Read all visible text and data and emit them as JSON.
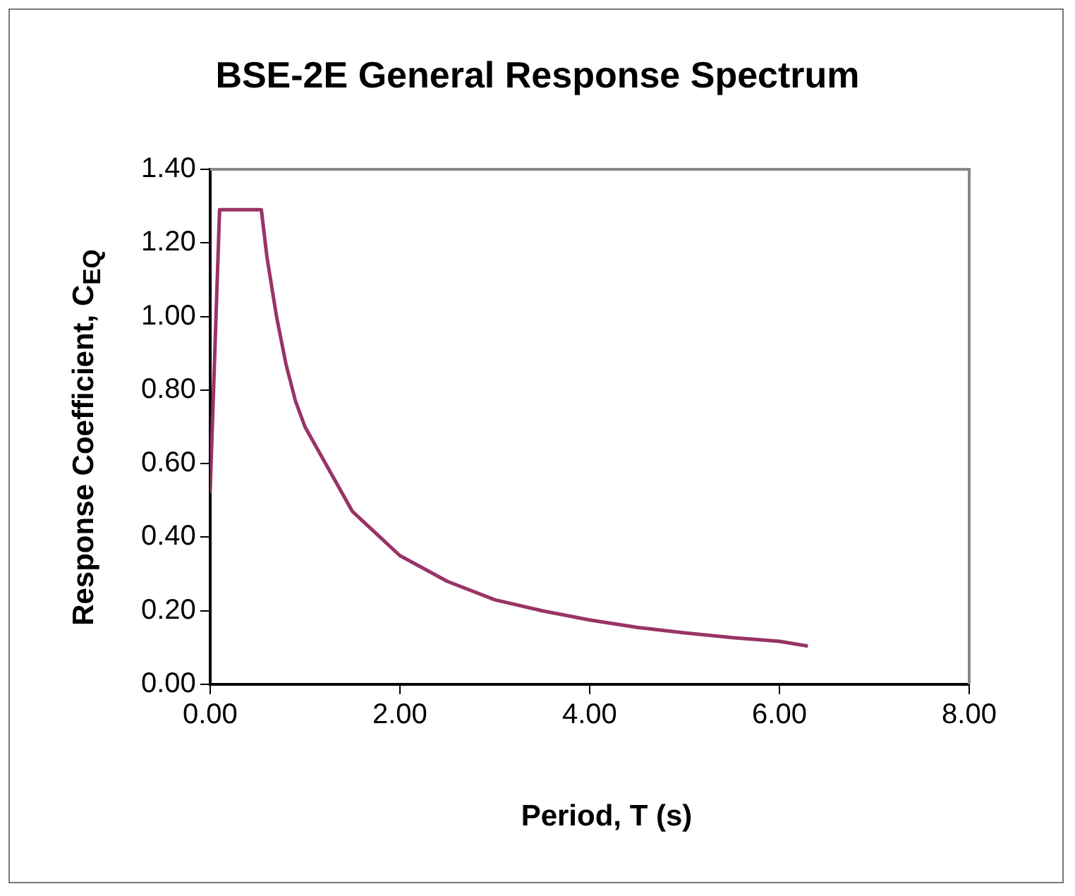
{
  "chart_data": {
    "type": "line",
    "title": "BSE-2E General Response Spectrum",
    "xlabel": "Period, T (s)",
    "ylabel": "Response Coefficient, C$_{EQ}$",
    "series": [
      {
        "color": "#993366",
        "x": [
          0,
          0.1,
          0.54,
          0.6,
          0.7,
          0.8,
          0.9,
          1.0,
          1.5,
          2.0,
          2.5,
          3.0,
          3.5,
          4.0,
          4.5,
          5.0,
          5.5,
          6.0,
          6.3
        ],
        "values": [
          0.52,
          1.29,
          1.29,
          1.16,
          1.0,
          0.87,
          0.77,
          0.7,
          0.47,
          0.35,
          0.28,
          0.23,
          0.2,
          0.175,
          0.155,
          0.14,
          0.127,
          0.117,
          0.104
        ]
      }
    ],
    "xlim": [
      0,
      8
    ],
    "xticks": [
      {
        "value": 0,
        "label": "0.00"
      },
      {
        "value": 2,
        "label": "2.00"
      },
      {
        "value": 4,
        "label": "4.00"
      },
      {
        "value": 6,
        "label": "6.00"
      },
      {
        "value": 8,
        "label": "8.00"
      }
    ],
    "ylim": [
      0,
      1.4
    ],
    "yticks": [
      {
        "value": 0,
        "label": "0.00"
      },
      {
        "value": 0.2,
        "label": "0.20"
      },
      {
        "value": 0.4,
        "label": "0.40"
      },
      {
        "value": 0.6,
        "label": "0.60"
      },
      {
        "value": 0.8,
        "label": "0.80"
      },
      {
        "value": 1.0,
        "label": "1.00"
      },
      {
        "value": 1.2,
        "label": "1.20"
      },
      {
        "value": 1.4,
        "label": "1.40"
      }
    ],
    "grid": false,
    "legend": false,
    "marker": "none",
    "line_style": "solid"
  }
}
